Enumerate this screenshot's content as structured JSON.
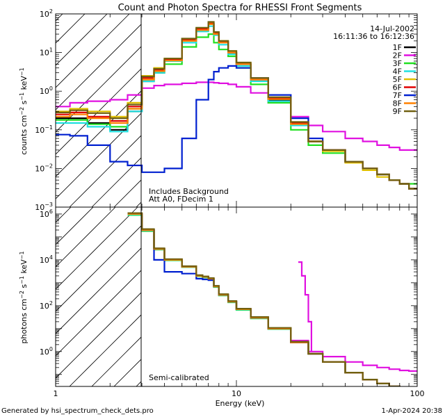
{
  "title": "Count and Photon Spectra for RHESSI Front Segments",
  "date_label": "14-Jul-2002",
  "time_range_label": "16:11:36 to 16:12:36",
  "footer_left": "Generated by hsi_spectrum_check_dets.pro",
  "footer_right": "1-Apr-2024 20:38",
  "colors": {
    "1F": "#000000",
    "2F": "#e010e0",
    "3F": "#20e020",
    "4F": "#20e0e0",
    "5F": "#e0c000",
    "6F": "#e00000",
    "7F": "#0020d0",
    "8F": "#ff8000",
    "9F": "#706010"
  },
  "chart_data": [
    {
      "type": "line",
      "panel": "count-spectrum",
      "xscale": "log",
      "yscale": "log",
      "xlim": [
        1,
        100
      ],
      "ylim": [
        0.001,
        100
      ],
      "xlabel": "Energy (keV)",
      "ylabel": "counts cm^-2 s^-1 keV^-1",
      "ytick_labels": [
        "10^-3",
        "10^-2",
        "10^-1",
        "10^0",
        "10^1",
        "10^2"
      ],
      "xtick_labels": [
        "1",
        "10",
        "100"
      ],
      "annotations": [
        "Includes Background",
        "Att A0, FDecim 1"
      ],
      "legend_location": "top-right",
      "hatched_region_keV": [
        1,
        3
      ],
      "x": [
        1.0,
        1.2,
        1.5,
        2.0,
        2.5,
        3.0,
        3.5,
        4.0,
        5.0,
        6.0,
        7.0,
        7.5,
        8.0,
        9.0,
        10.0,
        12.0,
        15.0,
        20.0,
        25.0,
        30.0,
        40.0,
        50.0,
        60.0,
        70.0,
        80.0,
        90.0,
        100.0
      ],
      "series": [
        {
          "name": "1F",
          "values": [
            0.2,
            0.2,
            0.15,
            0.1,
            0.3,
            1.8,
            3,
            6,
            20,
            40,
            55,
            30,
            18,
            10,
            5,
            2,
            0.6,
            0.15,
            0.05,
            0.03,
            0.015,
            0.01,
            0.007,
            0.005,
            0.004,
            0.003,
            0.003
          ]
        },
        {
          "name": "2F",
          "values": [
            0.4,
            0.5,
            0.55,
            0.6,
            0.8,
            1.2,
            1.4,
            1.5,
            1.6,
            1.7,
            1.7,
            1.65,
            1.6,
            1.5,
            1.3,
            0.9,
            0.5,
            0.22,
            0.13,
            0.09,
            0.06,
            0.05,
            0.04,
            0.035,
            0.03,
            0.03,
            0.03
          ]
        },
        {
          "name": "3F",
          "values": [
            0.18,
            0.18,
            0.14,
            0.12,
            0.35,
            2,
            3,
            5,
            14,
            25,
            30,
            18,
            12,
            8,
            4,
            1.5,
            0.5,
            0.1,
            0.04,
            0.025,
            0.015,
            0.01,
            0.007,
            0.005,
            0.004,
            0.004,
            0.004
          ]
        },
        {
          "name": "4F",
          "values": [
            0.15,
            0.15,
            0.12,
            0.09,
            0.3,
            1.8,
            3,
            6,
            18,
            35,
            48,
            28,
            16,
            9,
            4.5,
            1.8,
            0.55,
            0.13,
            0.05,
            0.03,
            0.015,
            0.01,
            0.007,
            0.005,
            0.004,
            0.003,
            0.003
          ]
        },
        {
          "name": "5F",
          "values": [
            0.3,
            0.35,
            0.3,
            0.22,
            0.5,
            2.5,
            4,
            7,
            22,
            42,
            60,
            33,
            20,
            11,
            5.5,
            2.2,
            0.7,
            0.16,
            0.05,
            0.028,
            0.014,
            0.009,
            0.006,
            0.005,
            0.004,
            0.003,
            0.003
          ]
        },
        {
          "name": "6F",
          "values": [
            0.25,
            0.28,
            0.22,
            0.17,
            0.4,
            2.2,
            3.5,
            6.5,
            21,
            40,
            56,
            31,
            19,
            10,
            5,
            2,
            0.65,
            0.15,
            0.05,
            0.03,
            0.015,
            0.01,
            0.007,
            0.005,
            0.004,
            0.003,
            0.003
          ]
        },
        {
          "name": "7F",
          "values": [
            0.075,
            0.07,
            0.04,
            0.015,
            0.012,
            0.008,
            0.008,
            0.01,
            0.06,
            0.6,
            2,
            3.2,
            4,
            4.5,
            4,
            2.2,
            0.8,
            0.2,
            0.06,
            0.03,
            0.015,
            0.01,
            0.007,
            0.005,
            0.004,
            0.003,
            0.003
          ]
        },
        {
          "name": "8F",
          "values": [
            0.22,
            0.25,
            0.2,
            0.15,
            0.35,
            2,
            3.3,
            6.2,
            20,
            38,
            54,
            30,
            18,
            10,
            5,
            2,
            0.62,
            0.14,
            0.05,
            0.03,
            0.015,
            0.01,
            0.007,
            0.005,
            0.004,
            0.003,
            0.003
          ]
        },
        {
          "name": "9F",
          "values": [
            0.28,
            0.32,
            0.27,
            0.2,
            0.45,
            2.4,
            3.8,
            7,
            23,
            44,
            62,
            34,
            20,
            11,
            5.5,
            2.2,
            0.7,
            0.16,
            0.05,
            0.03,
            0.015,
            0.01,
            0.007,
            0.005,
            0.004,
            0.003,
            0.003
          ]
        }
      ]
    },
    {
      "type": "line",
      "panel": "photon-spectrum",
      "xscale": "log",
      "yscale": "log",
      "xlim": [
        1,
        100
      ],
      "ylim": [
        0.03,
        2000000
      ],
      "xlabel": "Energy (keV)",
      "ylabel": "photons cm^-2 s^-1 keV^-1",
      "ytick_labels": [
        "10^0",
        "10^2",
        "10^4",
        "10^6"
      ],
      "xtick_labels": [
        "1",
        "10",
        "100"
      ],
      "annotations": [
        "Semi-calibrated"
      ],
      "hatched_region_keV": [
        1,
        3
      ],
      "x": [
        2.5,
        3.0,
        3.5,
        4.0,
        5.0,
        6.0,
        6.5,
        7.0,
        7.5,
        8.0,
        9.0,
        10.0,
        12.0,
        15.0,
        20.0,
        25.0,
        30.0,
        40.0,
        50.0,
        60.0,
        70.0,
        80.0,
        90.0,
        100.0
      ],
      "series": [
        {
          "name": "1F",
          "values": [
            1000000,
            200000,
            30000,
            10000,
            5000,
            2000,
            1800,
            1500,
            700,
            300,
            150,
            70,
            30,
            10,
            2.5,
            0.8,
            0.35,
            0.12,
            0.06,
            0.04,
            0.03,
            0.025,
            0.02,
            0.02
          ]
        },
        {
          "name": "2F",
          "values": [
            1000000,
            200000,
            30000,
            10000,
            5000,
            2000,
            1800,
            1500,
            700,
            300,
            150,
            70,
            30,
            10,
            3,
            1,
            0.6,
            0.35,
            0.25,
            0.2,
            0.17,
            0.15,
            0.14,
            0.13
          ]
        },
        {
          "name": "3F",
          "values": [
            900000,
            180000,
            28000,
            9500,
            4800,
            1900,
            1700,
            1400,
            650,
            280,
            140,
            65,
            28,
            9.5,
            2.5,
            0.8,
            0.35,
            0.12,
            0.06,
            0.04,
            0.03,
            0.025,
            0.02,
            0.02
          ]
        },
        {
          "name": "4F",
          "values": [
            950000,
            190000,
            29000,
            9800,
            4900,
            1950,
            1750,
            1450,
            680,
            290,
            145,
            68,
            29,
            9.8,
            2.5,
            0.8,
            0.35,
            0.12,
            0.06,
            0.04,
            0.03,
            0.025,
            0.02,
            0.02
          ]
        },
        {
          "name": "5F",
          "values": [
            1050000,
            210000,
            31000,
            10500,
            5200,
            2100,
            1850,
            1550,
            720,
            310,
            155,
            72,
            31,
            10.5,
            2.6,
            0.8,
            0.35,
            0.12,
            0.06,
            0.04,
            0.03,
            0.025,
            0.02,
            0.02
          ]
        },
        {
          "name": "6F",
          "values": [
            1000000,
            200000,
            30000,
            10000,
            5000,
            2000,
            1800,
            1500,
            700,
            300,
            150,
            70,
            30,
            10,
            2.5,
            0.8,
            0.35,
            0.12,
            0.06,
            0.04,
            0.03,
            0.025,
            0.02,
            0.02
          ]
        },
        {
          "name": "7F",
          "values": [
            1000000,
            200000,
            10000,
            3000,
            2500,
            1500,
            1400,
            1300,
            700,
            300,
            150,
            70,
            30,
            10,
            2.5,
            0.8,
            0.35,
            0.12,
            0.06,
            0.04,
            0.03,
            0.025,
            0.02,
            0.02
          ]
        },
        {
          "name": "8F",
          "values": [
            1000000,
            200000,
            30000,
            10000,
            5000,
            2000,
            1800,
            1500,
            700,
            300,
            150,
            70,
            30,
            10,
            2.5,
            0.8,
            0.35,
            0.12,
            0.06,
            0.04,
            0.03,
            0.025,
            0.02,
            0.02
          ]
        },
        {
          "name": "9F",
          "values": [
            1100000,
            220000,
            32000,
            10800,
            5300,
            2150,
            1900,
            1600,
            740,
            320,
            160,
            74,
            32,
            10.8,
            2.7,
            0.8,
            0.35,
            0.12,
            0.06,
            0.04,
            0.03,
            0.025,
            0.02,
            0.02
          ]
        }
      ],
      "spike": {
        "name": "2F",
        "x": [
          22,
          23,
          24,
          25,
          26
        ],
        "values": [
          8000,
          2000,
          300,
          20,
          1
        ]
      }
    }
  ]
}
